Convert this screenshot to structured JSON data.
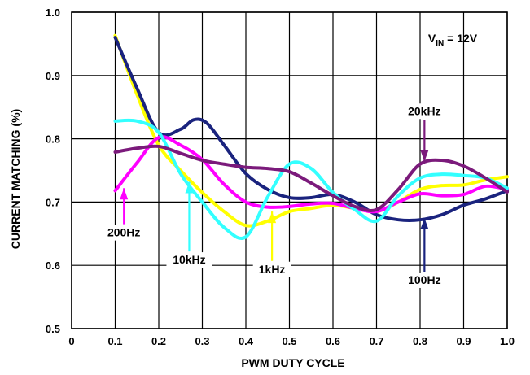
{
  "chart_data": {
    "type": "line",
    "xlabel": "PWM DUTY CYCLE",
    "ylabel": "CURRENT MATCHING (%)",
    "xlim": [
      0,
      1.0
    ],
    "ylim": [
      0.5,
      1.0
    ],
    "x_ticks": [
      "0",
      "0.1",
      "0.2",
      "0.3",
      "0.4",
      "0.5",
      "0.6",
      "0.7",
      "0.8",
      "0.9",
      "1.0"
    ],
    "y_ticks": [
      "0.5",
      "0.6",
      "0.7",
      "0.8",
      "0.9",
      "1.0"
    ],
    "grid": true,
    "annotation": {
      "main": "V",
      "sub": "IN",
      "rest": " = 12V"
    },
    "series": [
      {
        "name": "1kHz",
        "color": "#ffff00",
        "x": [
          0.1,
          0.15,
          0.2,
          0.25,
          0.3,
          0.35,
          0.4,
          0.45,
          0.5,
          0.55,
          0.6,
          0.65,
          0.7,
          0.75,
          0.8,
          0.85,
          0.9,
          0.95,
          1.0
        ],
        "y": [
          0.963,
          0.87,
          0.79,
          0.75,
          0.715,
          0.685,
          0.663,
          0.67,
          0.685,
          0.69,
          0.695,
          0.69,
          0.685,
          0.7,
          0.72,
          0.726,
          0.727,
          0.735,
          0.74
        ]
      },
      {
        "name": "100Hz",
        "color": "#1a237e",
        "x": [
          0.1,
          0.15,
          0.2,
          0.25,
          0.28,
          0.31,
          0.35,
          0.4,
          0.45,
          0.5,
          0.55,
          0.6,
          0.65,
          0.7,
          0.75,
          0.8,
          0.85,
          0.9,
          0.95,
          1.0
        ],
        "y": [
          0.96,
          0.88,
          0.81,
          0.815,
          0.83,
          0.825,
          0.79,
          0.745,
          0.72,
          0.707,
          0.707,
          0.712,
          0.7,
          0.68,
          0.672,
          0.672,
          0.68,
          0.695,
          0.705,
          0.718
        ]
      },
      {
        "name": "200Hz",
        "color": "#ff00ff",
        "x": [
          0.1,
          0.15,
          0.2,
          0.25,
          0.3,
          0.35,
          0.4,
          0.45,
          0.5,
          0.55,
          0.6,
          0.65,
          0.7,
          0.75,
          0.8,
          0.85,
          0.9,
          0.95,
          1.0
        ],
        "y": [
          0.718,
          0.762,
          0.802,
          0.79,
          0.767,
          0.728,
          0.7,
          0.692,
          0.693,
          0.697,
          0.698,
          0.69,
          0.685,
          0.7,
          0.713,
          0.71,
          0.712,
          0.725,
          0.72
        ]
      },
      {
        "name": "10kHz",
        "color": "#33ffff",
        "x": [
          0.1,
          0.15,
          0.2,
          0.25,
          0.3,
          0.35,
          0.4,
          0.45,
          0.5,
          0.55,
          0.6,
          0.65,
          0.7,
          0.75,
          0.8,
          0.85,
          0.9,
          0.95,
          1.0
        ],
        "y": [
          0.828,
          0.828,
          0.81,
          0.745,
          0.7,
          0.66,
          0.645,
          0.708,
          0.76,
          0.753,
          0.715,
          0.688,
          0.67,
          0.71,
          0.738,
          0.744,
          0.742,
          0.738,
          0.722
        ]
      },
      {
        "name": "20kHz",
        "color": "#7b1a7b",
        "x": [
          0.1,
          0.15,
          0.2,
          0.25,
          0.3,
          0.35,
          0.4,
          0.45,
          0.5,
          0.55,
          0.6,
          0.65,
          0.7,
          0.75,
          0.8,
          0.85,
          0.9,
          0.95,
          1.0
        ],
        "y": [
          0.779,
          0.785,
          0.788,
          0.777,
          0.766,
          0.76,
          0.755,
          0.753,
          0.748,
          0.73,
          0.71,
          0.693,
          0.688,
          0.72,
          0.76,
          0.766,
          0.757,
          0.738,
          0.716
        ]
      }
    ],
    "labels": [
      {
        "text": "200Hz",
        "series": "200Hz",
        "arrow_tip": [
          0.12,
          0.722
        ],
        "arrow_tail": [
          0.12,
          0.665
        ]
      },
      {
        "text": "10kHz",
        "series": "10kHz",
        "arrow_tip": [
          0.27,
          0.732
        ],
        "arrow_tail": [
          0.27,
          0.622
        ]
      },
      {
        "text": "1kHz",
        "series": "1kHz",
        "arrow_tip": [
          0.46,
          0.685
        ],
        "arrow_tail": [
          0.46,
          0.607
        ]
      },
      {
        "text": "20kHz",
        "series": "20kHz",
        "arrow_tip": [
          0.81,
          0.764
        ],
        "arrow_tail": [
          0.81,
          0.83
        ]
      },
      {
        "text": "100Hz",
        "series": "100Hz",
        "arrow_tip": [
          0.81,
          0.675
        ],
        "arrow_tail": [
          0.81,
          0.59
        ]
      }
    ]
  }
}
